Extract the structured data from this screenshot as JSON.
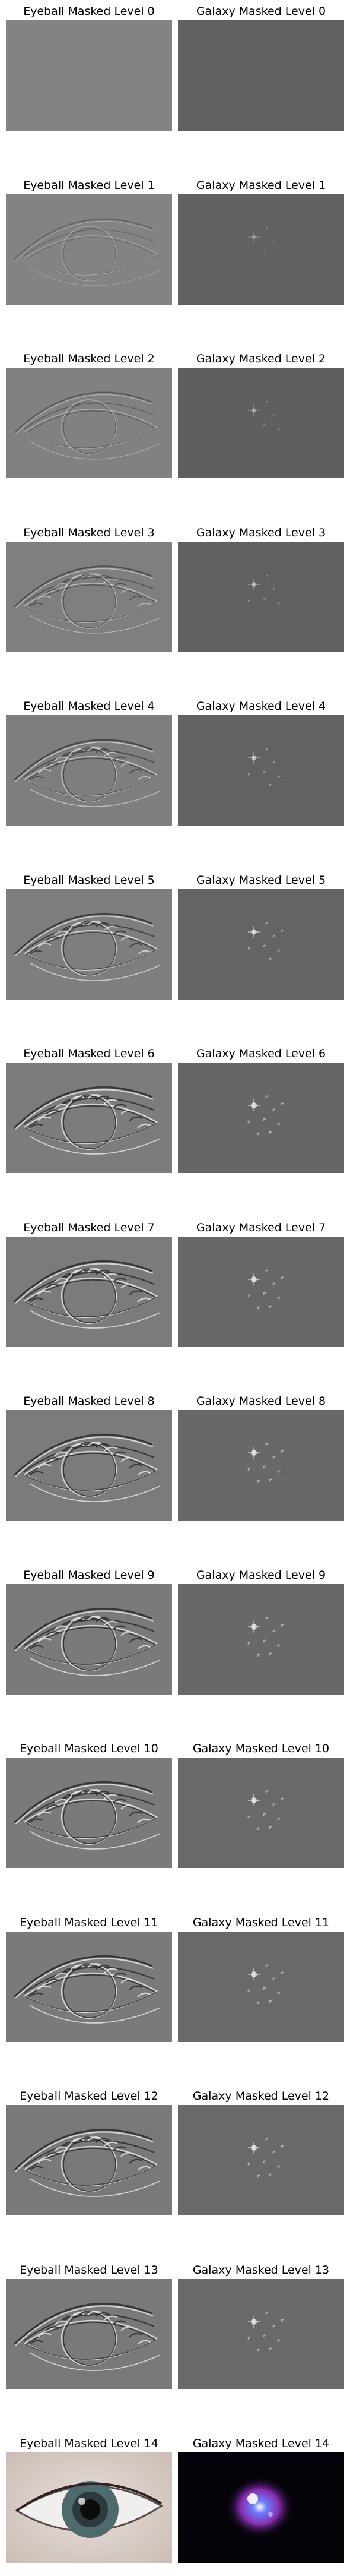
{
  "figure": {
    "panels": [
      {
        "row": 0,
        "eyeball_title": "Eyeball Masked Level 0",
        "galaxy_title": "Galaxy Masked Level 0",
        "eyeball_bg": "#838383",
        "galaxy_bg": "#616161"
      },
      {
        "row": 1,
        "eyeball_title": "Eyeball Masked Level 1",
        "galaxy_title": "Galaxy Masked Level 1",
        "eyeball_bg": "#838383",
        "galaxy_bg": "#616161"
      },
      {
        "row": 2,
        "eyeball_title": "Eyeball Masked Level 2",
        "galaxy_title": "Galaxy Masked Level 2",
        "eyeball_bg": "#818181",
        "galaxy_bg": "#5f5f5f"
      },
      {
        "row": 3,
        "eyeball_title": "Eyeball Masked Level 3",
        "galaxy_title": "Galaxy Masked Level 3",
        "eyeball_bg": "#7f7f7f",
        "galaxy_bg": "#606060"
      },
      {
        "row": 4,
        "eyeball_title": "Eyeball Masked Level 4",
        "galaxy_title": "Galaxy Masked Level 4",
        "eyeball_bg": "#7e7e7e",
        "galaxy_bg": "#626262"
      },
      {
        "row": 5,
        "eyeball_title": "Eyeball Masked Level 5",
        "galaxy_title": "Galaxy Masked Level 5",
        "eyeball_bg": "#7e7e7e",
        "galaxy_bg": "#646464"
      },
      {
        "row": 6,
        "eyeball_title": "Eyeball Masked Level 6",
        "galaxy_title": "Galaxy Masked Level 6",
        "eyeball_bg": "#7c7c7c",
        "galaxy_bg": "#666666"
      },
      {
        "row": 7,
        "eyeball_title": "Eyeball Masked Level 7",
        "galaxy_title": "Galaxy Masked Level 7",
        "eyeball_bg": "#7b7b7b",
        "galaxy_bg": "#676767"
      },
      {
        "row": 8,
        "eyeball_title": "Eyeball Masked Level 8",
        "galaxy_title": "Galaxy Masked Level 8",
        "eyeball_bg": "#7b7b7b",
        "galaxy_bg": "#686868"
      },
      {
        "row": 9,
        "eyeball_title": "Eyeball Masked Level 9",
        "galaxy_title": "Galaxy Masked Level 9",
        "eyeball_bg": "#7a7a7a",
        "galaxy_bg": "#686868"
      },
      {
        "row": 10,
        "eyeball_title": "Eyeball Masked Level 10",
        "galaxy_title": "Galaxy Masked Level 10",
        "eyeball_bg": "#7a7a7a",
        "galaxy_bg": "#696969"
      },
      {
        "row": 11,
        "eyeball_title": "Eyeball Masked Level 11",
        "galaxy_title": "Galaxy Masked Level 11",
        "eyeball_bg": "#7a7a7a",
        "galaxy_bg": "#696969"
      },
      {
        "row": 12,
        "eyeball_title": "Eyeball Masked Level 12",
        "galaxy_title": "Galaxy Masked Level 12",
        "eyeball_bg": "#797979",
        "galaxy_bg": "#696969"
      },
      {
        "row": 13,
        "eyeball_title": "Eyeball Masked Level 13",
        "galaxy_title": "Galaxy Masked Level 13",
        "eyeball_bg": "#797979",
        "galaxy_bg": "#696969"
      },
      {
        "row": 14,
        "eyeball_title": "Eyeball Masked Level 14",
        "galaxy_title": "Galaxy Masked Level 14",
        "eyeball_bg": "#d8cfcb",
        "galaxy_bg": "#05030a"
      }
    ]
  }
}
